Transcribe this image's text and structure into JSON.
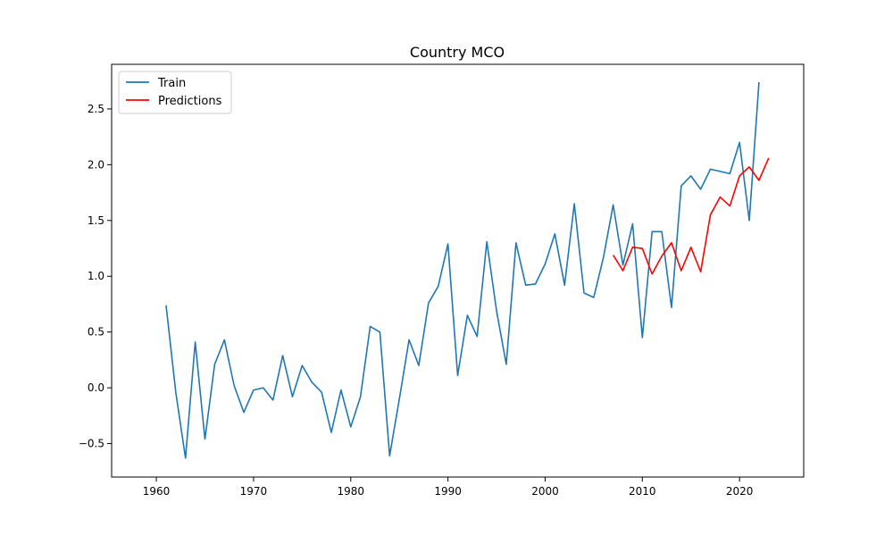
{
  "chart_data": {
    "type": "line",
    "title": "Country MCO",
    "xlabel": "",
    "ylabel": "",
    "xlim": [
      1955.4,
      2026.6
    ],
    "ylim": [
      -0.8,
      2.9
    ],
    "x_ticks": [
      1960,
      1970,
      1980,
      1990,
      2000,
      2010,
      2020
    ],
    "y_ticks": [
      -0.5,
      0.0,
      0.5,
      1.0,
      1.5,
      2.0,
      2.5
    ],
    "x_tick_labels": [
      "1960",
      "1970",
      "1980",
      "1990",
      "2000",
      "2010",
      "2020"
    ],
    "y_tick_labels": [
      "−0.5",
      "0.0",
      "0.5",
      "1.0",
      "1.5",
      "2.0",
      "2.5"
    ],
    "grid": false,
    "legend_position": "top-left",
    "series": [
      {
        "name": "Train",
        "color": "#1f77b4",
        "x": [
          1961,
          1962,
          1963,
          1964,
          1965,
          1966,
          1967,
          1968,
          1969,
          1970,
          1971,
          1972,
          1973,
          1974,
          1975,
          1976,
          1977,
          1978,
          1979,
          1980,
          1981,
          1982,
          1983,
          1984,
          1985,
          1986,
          1987,
          1988,
          1989,
          1990,
          1991,
          1992,
          1993,
          1994,
          1995,
          1996,
          1997,
          1998,
          1999,
          2000,
          2001,
          2002,
          2003,
          2004,
          2005,
          2006,
          2007,
          2008,
          2009,
          2010,
          2011,
          2012,
          2013,
          2014,
          2015,
          2016,
          2017,
          2018,
          2019,
          2020,
          2021,
          2022
        ],
        "y": [
          0.74,
          -0.04,
          -0.63,
          0.41,
          -0.46,
          0.21,
          0.43,
          0.02,
          -0.22,
          -0.02,
          0.0,
          -0.11,
          0.29,
          -0.08,
          0.2,
          0.05,
          -0.04,
          -0.4,
          -0.02,
          -0.35,
          -0.08,
          0.55,
          0.5,
          -0.61,
          -0.1,
          0.43,
          0.2,
          0.76,
          0.91,
          1.29,
          0.11,
          0.65,
          0.46,
          1.31,
          0.69,
          0.21,
          1.3,
          0.92,
          0.93,
          1.11,
          1.38,
          0.92,
          1.65,
          0.85,
          0.81,
          1.17,
          1.64,
          1.1,
          1.47,
          0.45,
          1.4,
          1.4,
          0.72,
          1.81,
          1.9,
          1.78,
          1.96,
          1.94,
          1.92,
          2.2,
          1.5,
          2.74
        ]
      },
      {
        "name": "Predictions",
        "color": "#ff0000",
        "x": [
          2007,
          2008,
          2009,
          2010,
          2011,
          2012,
          2013,
          2014,
          2015,
          2016,
          2017,
          2018,
          2019,
          2020,
          2021,
          2022,
          2023
        ],
        "y": [
          1.19,
          1.05,
          1.26,
          1.25,
          1.02,
          1.18,
          1.3,
          1.05,
          1.26,
          1.04,
          1.55,
          1.71,
          1.63,
          1.9,
          1.98,
          1.86,
          2.06
        ]
      }
    ]
  }
}
